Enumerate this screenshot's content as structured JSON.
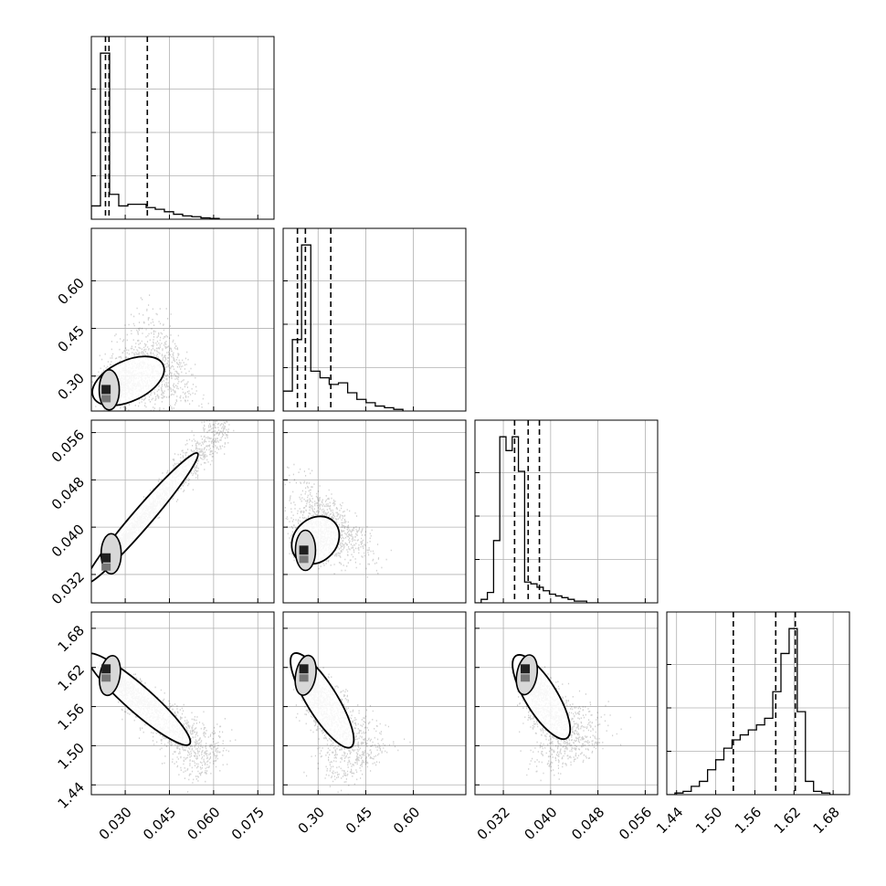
{
  "chart_data": {
    "type": "corner",
    "title": "",
    "parameters": [
      {
        "label": "",
        "range": [
          0.0185,
          0.0805
        ],
        "ticks": [
          0.03,
          0.045,
          0.06,
          0.075
        ],
        "tick_labels": [
          "0.030",
          "0.045",
          "0.060",
          "0.075"
        ],
        "quantiles": [
          0.0233,
          0.0245,
          0.0375
        ],
        "histogram": {
          "edges": [
            0.0185,
            0.0216,
            0.0247,
            0.0278,
            0.0309,
            0.034,
            0.0371,
            0.0402,
            0.0433,
            0.0464,
            0.0495,
            0.0526,
            0.0557,
            0.0588,
            0.0619
          ],
          "counts": [
            0.08,
            1.0,
            0.15,
            0.08,
            0.09,
            0.09,
            0.07,
            0.06,
            0.045,
            0.03,
            0.02,
            0.015,
            0.008,
            0.005
          ]
        }
      },
      {
        "label": "",
        "range": [
          0.19,
          0.765
        ],
        "ticks": [
          0.3,
          0.45,
          0.6
        ],
        "tick_labels": [
          "0.30",
          "0.45",
          "0.60"
        ],
        "quantiles": [
          0.235,
          0.26,
          0.34
        ],
        "histogram": {
          "edges": [
            0.19,
            0.219,
            0.248,
            0.277,
            0.306,
            0.335,
            0.364,
            0.393,
            0.422,
            0.451,
            0.48,
            0.509,
            0.538,
            0.567
          ],
          "counts": [
            0.12,
            0.43,
            1.0,
            0.24,
            0.2,
            0.16,
            0.17,
            0.11,
            0.07,
            0.05,
            0.03,
            0.02,
            0.01
          ]
        }
      },
      {
        "label": "",
        "range": [
          0.0272,
          0.0581
        ],
        "ticks": [
          0.032,
          0.04,
          0.048,
          0.056
        ],
        "tick_labels": [
          "0.032",
          "0.040",
          "0.048",
          "0.056"
        ],
        "quantiles": [
          0.0339,
          0.0362,
          0.0381
        ],
        "histogram": {
          "edges": [
            0.0272,
            0.02825,
            0.0293,
            0.03035,
            0.0314,
            0.03245,
            0.0335,
            0.03455,
            0.0356,
            0.03665,
            0.0377,
            0.03875,
            0.0398,
            0.04085,
            0.0419,
            0.04295,
            0.044,
            0.04505,
            0.0461,
            0.04715,
            0.0482
          ],
          "counts": [
            0.0,
            0.02,
            0.06,
            0.36,
            0.96,
            0.88,
            0.96,
            0.76,
            0.12,
            0.11,
            0.09,
            0.07,
            0.05,
            0.04,
            0.03,
            0.02,
            0.01,
            0.01,
            0.0,
            0.0
          ]
        }
      },
      {
        "label": "",
        "range": [
          1.425,
          1.705
        ],
        "ticks": [
          1.44,
          1.5,
          1.56,
          1.62,
          1.68
        ],
        "tick_labels": [
          "1.44",
          "1.50",
          "1.56",
          "1.62",
          "1.68"
        ],
        "quantiles": [
          1.527,
          1.592,
          1.622
        ],
        "histogram": {
          "edges": [
            1.425,
            1.4375,
            1.45,
            1.4625,
            1.475,
            1.4875,
            1.5,
            1.5125,
            1.525,
            1.5375,
            1.55,
            1.5625,
            1.575,
            1.5875,
            1.6,
            1.6125,
            1.625,
            1.6375,
            1.65,
            1.6625,
            1.675,
            1.6875,
            1.7
          ],
          "counts": [
            0.0,
            0.01,
            0.02,
            0.05,
            0.08,
            0.15,
            0.21,
            0.28,
            0.33,
            0.36,
            0.39,
            0.42,
            0.46,
            0.62,
            0.85,
            1.0,
            0.5,
            0.08,
            0.02,
            0.01,
            0.0,
            0.0
          ]
        }
      }
    ],
    "pair_modes": {
      "1_0": {
        "peak": [
          0.0235,
          0.252
        ],
        "tail_end": [
          0.045,
          0.345
        ],
        "spread": 0.42
      },
      "2_0": {
        "peak": [
          0.0235,
          0.0345
        ],
        "tail_end": [
          0.058,
          0.0545
        ],
        "spread": 0.12
      },
      "2_1": {
        "peak": [
          0.255,
          0.0358
        ],
        "tail_end": [
          0.36,
          0.0415
        ],
        "spread": 0.45
      },
      "3_0": {
        "peak": [
          0.0235,
          1.615
        ],
        "tail_end": [
          0.055,
          1.49
        ],
        "spread": 0.22
      },
      "3_1": {
        "peak": [
          0.255,
          1.615
        ],
        "tail_end": [
          0.42,
          1.485
        ],
        "spread": 0.28
      },
      "3_2": {
        "peak": [
          0.0357,
          1.615
        ],
        "tail_end": [
          0.0435,
          1.5
        ],
        "spread": 0.3
      }
    },
    "grid": true,
    "colors": {
      "line": "#000000",
      "grid": "#b0b0b0",
      "points": "#000000"
    }
  }
}
